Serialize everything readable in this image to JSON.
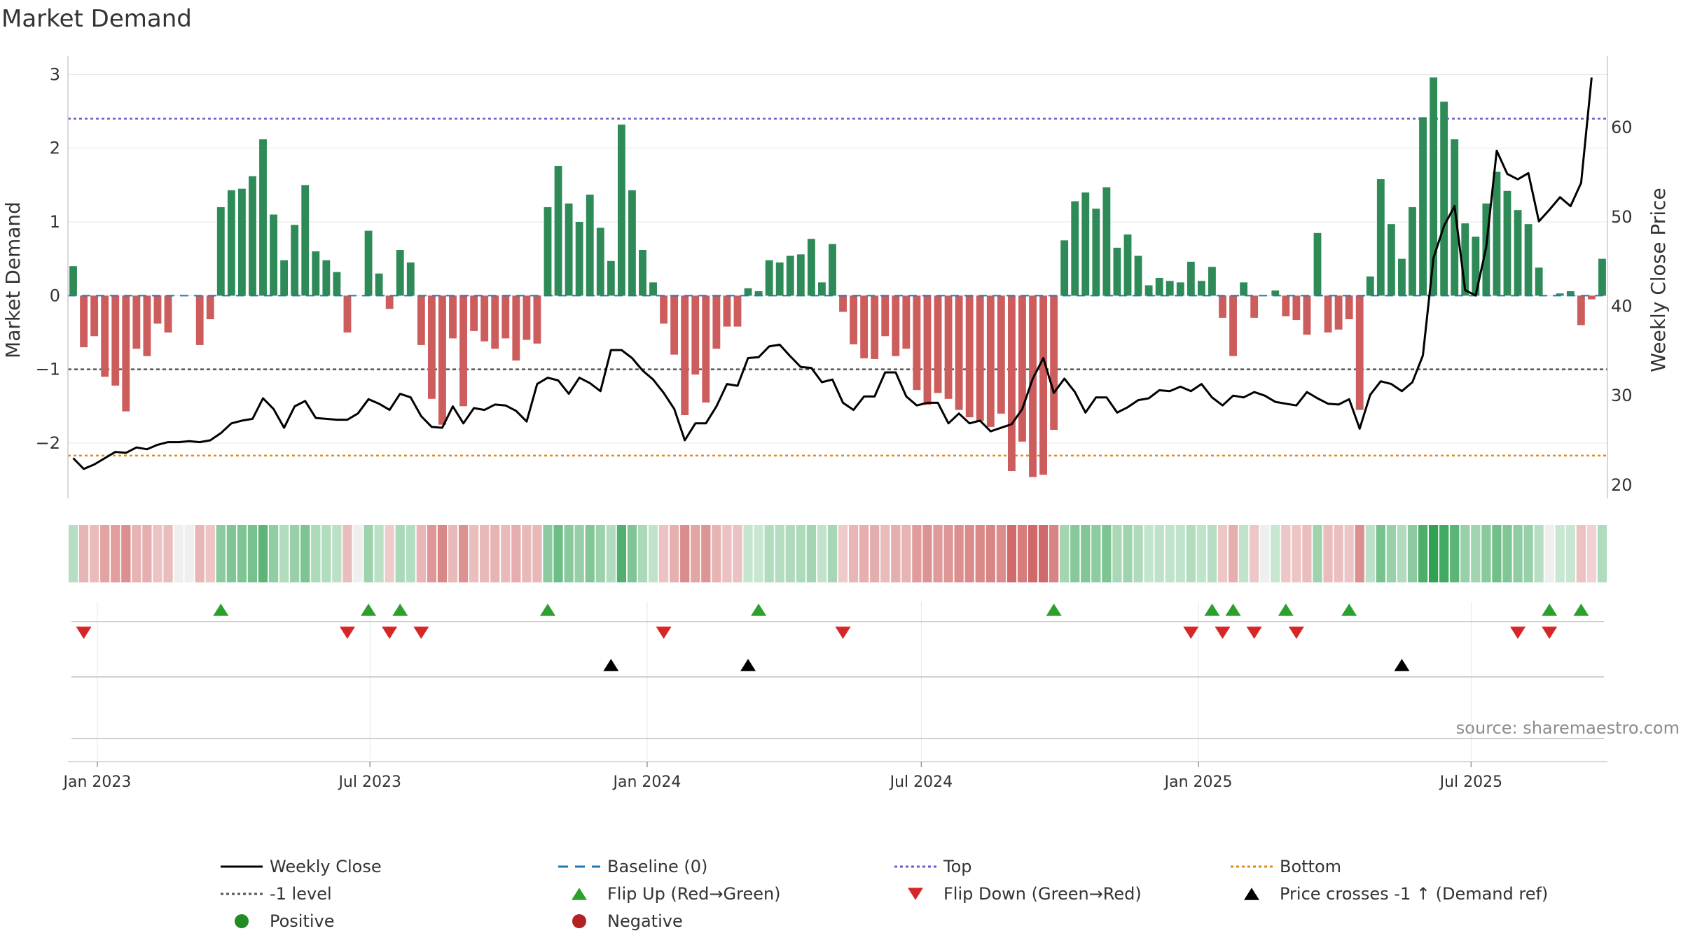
{
  "chart_data": {
    "type": "bar",
    "title": "Market Demand",
    "ylabel": "Market Demand",
    "y2label": "Weekly Close Price",
    "ylim": [
      -2.75,
      3.25
    ],
    "y2lim": [
      18.5,
      68
    ],
    "yticks": [
      3,
      2,
      1,
      0,
      -1,
      -2
    ],
    "ytick_labels": [
      "3",
      "2",
      "1",
      "0",
      "−1",
      "−2"
    ],
    "y2ticks": [
      60,
      50,
      40,
      30,
      20
    ],
    "start_date": "2022-12-16",
    "week_days": 7,
    "x_ticks": [
      {
        "label": "Jan 2023",
        "date": "2023-01-01"
      },
      {
        "label": "Jul 2023",
        "date": "2023-07-01"
      },
      {
        "label": "Jan 2024",
        "date": "2024-01-01"
      },
      {
        "label": "Jul 2024",
        "date": "2024-07-01"
      },
      {
        "label": "Jan 2025",
        "date": "2025-01-01"
      },
      {
        "label": "Jul 2025",
        "date": "2025-07-01"
      }
    ],
    "reference_lines": {
      "top": 2.4,
      "bottom": -2.17,
      "minus_one": -1,
      "baseline": 0
    },
    "demand": [
      0.4,
      -0.7,
      -0.55,
      -1.1,
      -1.22,
      -1.57,
      -0.72,
      -0.82,
      -0.38,
      -0.5,
      0,
      0,
      -0.67,
      -0.32,
      1.2,
      1.43,
      1.45,
      1.62,
      2.12,
      1.1,
      0.48,
      0.96,
      1.5,
      0.6,
      0.48,
      0.32,
      -0.5,
      0,
      0.88,
      0.3,
      -0.18,
      0.62,
      0.45,
      -0.67,
      -1.4,
      -1.75,
      -0.58,
      -1.5,
      -0.48,
      -0.62,
      -0.72,
      -0.58,
      -0.88,
      -0.6,
      -0.65,
      1.2,
      1.76,
      1.25,
      1.0,
      1.37,
      0.92,
      0.47,
      2.32,
      1.43,
      0.62,
      0.18,
      -0.38,
      -0.8,
      -1.62,
      -1.07,
      -1.45,
      -0.72,
      -0.42,
      -0.42,
      0.1,
      0.06,
      0.48,
      0.45,
      0.54,
      0.56,
      0.77,
      0.18,
      0.7,
      -0.22,
      -0.66,
      -0.85,
      -0.86,
      -0.55,
      -0.82,
      -0.72,
      -1.28,
      -1.48,
      -1.32,
      -1.4,
      -1.55,
      -1.65,
      -1.7,
      -1.78,
      -1.6,
      -2.38,
      -1.98,
      -2.46,
      -2.43,
      -1.82,
      0.75,
      1.28,
      1.4,
      1.18,
      1.47,
      0.65,
      0.83,
      0.54,
      0.14,
      0.24,
      0.2,
      0.18,
      0.46,
      0.2,
      0.39,
      -0.3,
      -0.82,
      0.18,
      -0.3,
      0,
      0.07,
      -0.28,
      -0.33,
      -0.53,
      0.85,
      -0.5,
      -0.46,
      -0.32,
      -1.55,
      0.26,
      1.58,
      0.97,
      0.5,
      1.2,
      2.42,
      2.96,
      2.63,
      2.12,
      0.98,
      0.8,
      1.25,
      1.68,
      1.42,
      1.16,
      0.97,
      0.38,
      0,
      0.03,
      0.06,
      -0.4,
      -0.05,
      0.5
    ],
    "close": [
      23.0,
      21.8,
      22.3,
      23.0,
      23.7,
      23.6,
      24.2,
      24.0,
      24.5,
      24.8,
      24.8,
      24.9,
      24.8,
      25.0,
      25.8,
      26.9,
      27.2,
      27.4,
      29.7,
      28.5,
      26.4,
      28.8,
      29.4,
      27.5,
      27.4,
      27.3,
      27.3,
      28.0,
      29.6,
      29.1,
      28.4,
      30.2,
      29.8,
      27.7,
      26.5,
      26.4,
      28.8,
      26.9,
      28.6,
      28.4,
      29.0,
      28.9,
      28.3,
      27.1,
      31.3,
      32.0,
      31.7,
      30.2,
      32.0,
      31.4,
      30.5,
      35.1,
      35.1,
      34.2,
      32.8,
      31.8,
      30.3,
      28.5,
      25.0,
      26.9,
      26.9,
      28.8,
      31.3,
      31.1,
      34.2,
      34.3,
      35.5,
      35.7,
      34.4,
      33.2,
      33.1,
      31.5,
      31.8,
      29.2,
      28.4,
      29.9,
      29.9,
      32.6,
      32.6,
      29.9,
      28.9,
      29.2,
      29.2,
      26.9,
      28.0,
      26.9,
      27.2,
      26.0,
      26.4,
      26.8,
      28.5,
      31.9,
      34.2,
      30.3,
      31.9,
      30.4,
      28.1,
      29.8,
      29.8,
      28.1,
      28.7,
      29.5,
      29.7,
      30.6,
      30.5,
      31.0,
      30.5,
      31.3,
      29.8,
      28.9,
      30.0,
      29.8,
      30.4,
      30.0,
      29.3,
      29.1,
      28.9,
      30.4,
      29.7,
      29.1,
      29.0,
      29.6,
      26.3,
      30.1,
      31.6,
      31.3,
      30.5,
      31.5,
      34.5,
      45.4,
      49.0,
      51.2,
      41.8,
      41.2,
      46.6,
      57.4,
      54.8,
      54.2,
      54.9,
      49.5,
      50.8,
      52.2,
      51.2,
      53.8,
      65.6
    ],
    "flip_up": [
      14,
      28,
      31,
      45,
      65,
      93,
      108,
      110,
      115,
      121,
      140,
      143
    ],
    "flip_down": [
      1,
      26,
      30,
      33,
      56,
      73,
      106,
      109,
      112,
      116,
      137,
      140
    ],
    "price_cross": [
      51,
      64,
      126
    ],
    "annotation": "source: sharemaestro.com",
    "colors": {
      "positive_bar": "#2e8b57",
      "negative_bar": "#cd5c5c",
      "close_line": "#000000",
      "baseline": "#1f77b4",
      "top": "#6a5acd",
      "bottom": "#e08a18",
      "minus_one": "#555555",
      "flip_up": "#2ca02c",
      "flip_down": "#d62728",
      "price_cross": "#000000",
      "grid": "#e6e6e6"
    },
    "legend": [
      {
        "label": "Weekly Close",
        "symbol": "line",
        "color": "#000000"
      },
      {
        "label": "Baseline (0)",
        "symbol": "dash",
        "color": "#1f77b4"
      },
      {
        "label": "Top",
        "symbol": "dot",
        "color": "#6a5acd"
      },
      {
        "label": "Bottom",
        "symbol": "dot",
        "color": "#e08a18"
      },
      {
        "label": "-1 level",
        "symbol": "dot",
        "color": "#555555"
      },
      {
        "label": "Flip Up (Red→Green)",
        "symbol": "up",
        "color": "#2ca02c"
      },
      {
        "label": "Flip Down (Green→Red)",
        "symbol": "down",
        "color": "#d62728"
      },
      {
        "label": "Price crosses -1 ↑ (Demand ref)",
        "symbol": "up",
        "color": "#000000"
      },
      {
        "label": "Positive",
        "symbol": "circle",
        "color": "#228b22"
      },
      {
        "label": "Negative",
        "symbol": "circle",
        "color": "#b22222"
      }
    ],
    "legend_position": "bottom"
  }
}
